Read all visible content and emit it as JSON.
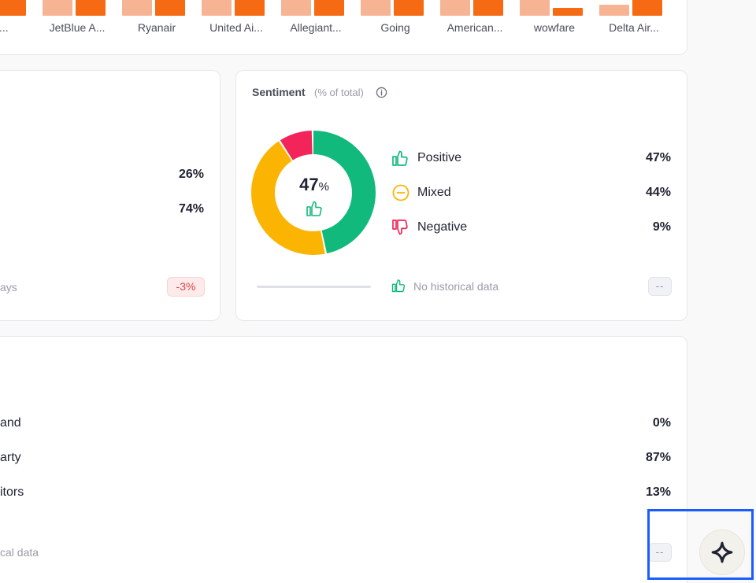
{
  "top_chart": {
    "airlines": [
      {
        "label": "...r...",
        "light": 1.0,
        "dark": 1.0
      },
      {
        "label": "JetBlue A...",
        "light": 1.0,
        "dark": 1.0
      },
      {
        "label": "Ryanair",
        "light": 1.0,
        "dark": 1.0
      },
      {
        "label": "United Ai...",
        "light": 1.0,
        "dark": 1.0
      },
      {
        "label": "Allegiant...",
        "light": 0.9,
        "dark": 1.0
      },
      {
        "label": "Going",
        "light": 0.7,
        "dark": 0.85
      },
      {
        "label": "American...",
        "light": 0.45,
        "dark": 0.6
      },
      {
        "label": "wowfare",
        "light": 0.45,
        "dark": 0.2
      },
      {
        "label": "Delta Air...",
        "light": 0.3,
        "dark": 0.45
      }
    ],
    "colors": {
      "light": "#f6b494",
      "dark": "#f56a12"
    }
  },
  "share_card": {
    "rows": [
      {
        "value": "26%"
      },
      {
        "value": "74%"
      }
    ],
    "footer_label": "ays",
    "change_badge": "-3%"
  },
  "sentiment": {
    "title": "Sentiment",
    "subtitle": "(% of total)",
    "center_value": "47",
    "center_unit": "%",
    "items": [
      {
        "label": "Positive",
        "value": "47%",
        "pct": 47,
        "color": "#12b97c",
        "icon": "thumbs-up-icon"
      },
      {
        "label": "Mixed",
        "value": "44%",
        "pct": 44,
        "color": "#fbb402",
        "icon": "neutral-circle-icon"
      },
      {
        "label": "Negative",
        "value": "9%",
        "pct": 9,
        "color": "#f3245a",
        "icon": "thumbs-down-icon"
      }
    ],
    "history_text": "No historical data",
    "history_badge": "--"
  },
  "source_card": {
    "rows": [
      {
        "label": "and",
        "value": "0%"
      },
      {
        "label": "arty",
        "value": "87%"
      },
      {
        "label": "itors",
        "value": "13%"
      }
    ],
    "history_text": "cal data",
    "history_badge": "--"
  },
  "assistant": {
    "icon": "sparkle-icon"
  }
}
